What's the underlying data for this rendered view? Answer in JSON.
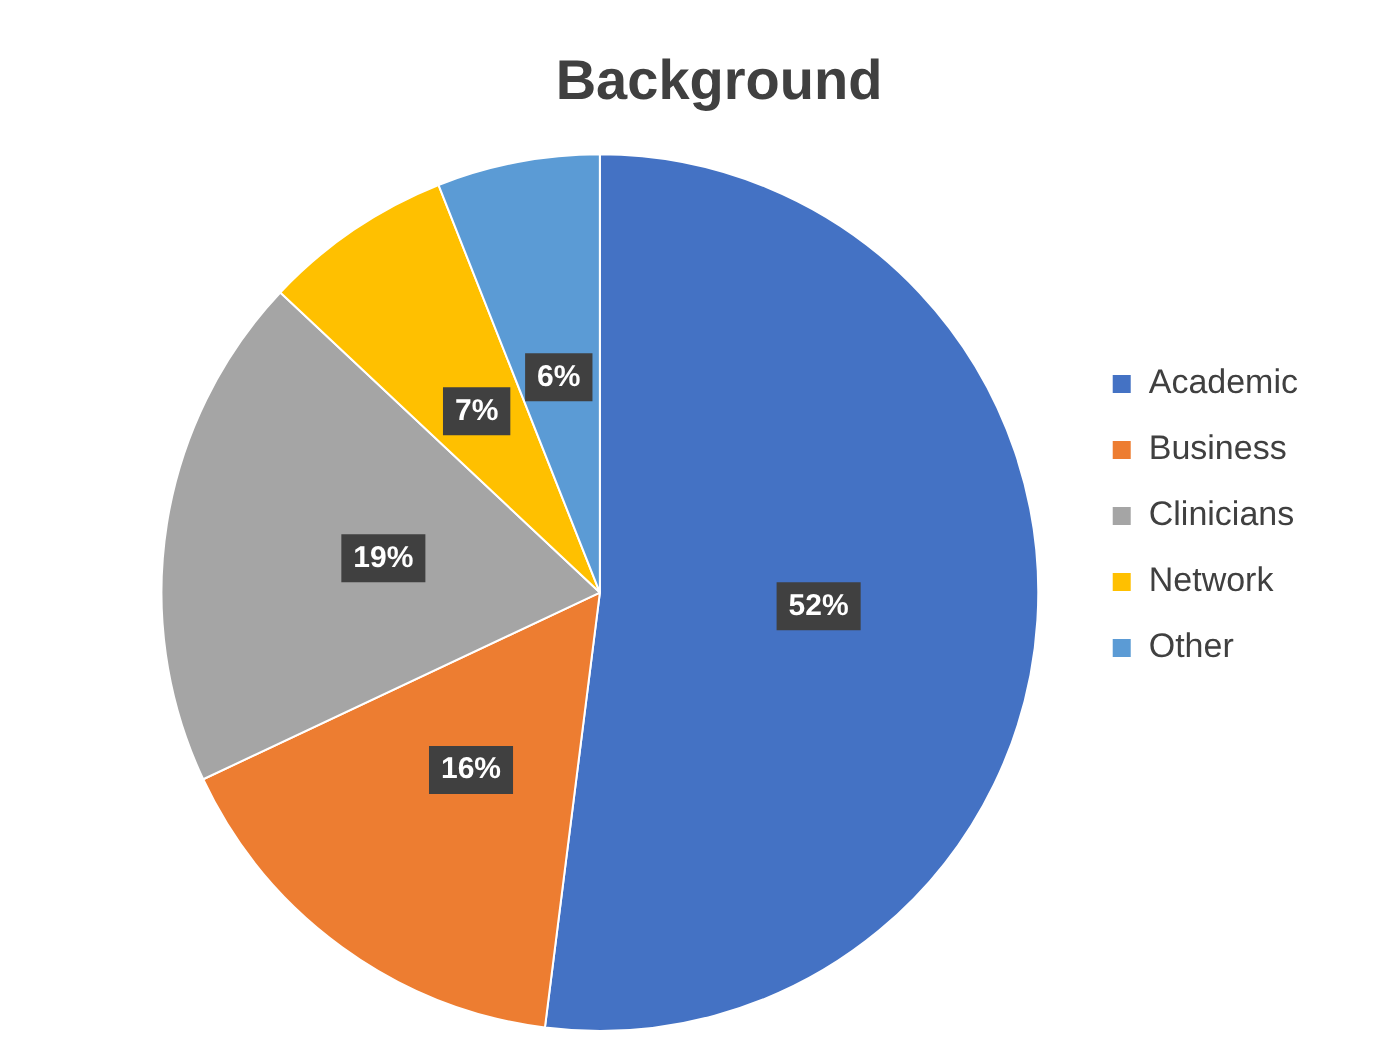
{
  "chart_data": {
    "type": "pie",
    "title": "Background",
    "categories": [
      "Academic",
      "Business",
      "Clinicians",
      "Network",
      "Other"
    ],
    "values": [
      52,
      16,
      19,
      7,
      6
    ],
    "colors": [
      "#4472c4",
      "#ed7d31",
      "#a5a5a5",
      "#ffc000",
      "#5b9bd5"
    ],
    "value_labels": [
      "52%",
      "16%",
      "19%",
      "7%",
      "6%"
    ],
    "legend": "right"
  }
}
